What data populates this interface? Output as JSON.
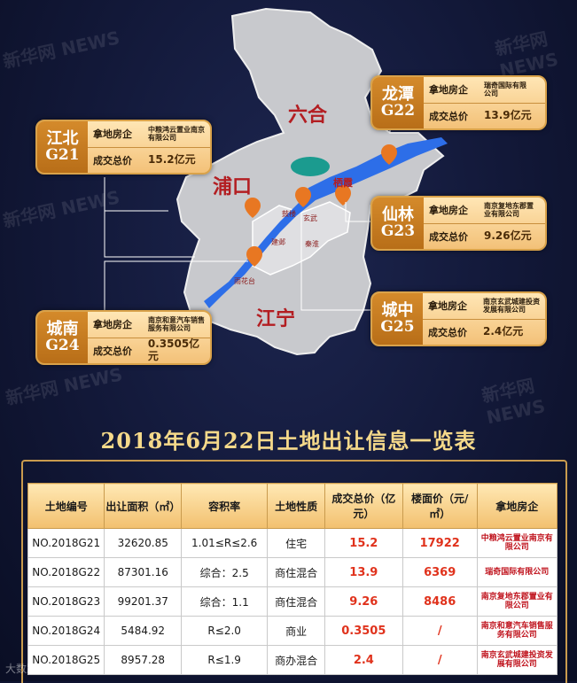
{
  "map": {
    "districts": [
      "六合",
      "浦口",
      "江宁",
      "栖霞"
    ],
    "small_labels": [
      "鼓楼",
      "玄武",
      "建邺",
      "秦淮",
      "雨花台"
    ]
  },
  "cards": [
    {
      "area": "江北",
      "code": "G21",
      "dev_label": "拿地房企",
      "dev": "中粮鸿云置业南京有限公司",
      "price_label": "成交总价",
      "price": "15.2亿元"
    },
    {
      "area": "龙潭",
      "code": "G22",
      "dev_label": "拿地房企",
      "dev": "瑞奇国际有限公司",
      "price_label": "成交总价",
      "price": "13.9亿元"
    },
    {
      "area": "仙林",
      "code": "G23",
      "dev_label": "拿地房企",
      "dev": "南京复地东郡置业有限公司",
      "price_label": "成交总价",
      "price": "9.26亿元"
    },
    {
      "area": "城南",
      "code": "G24",
      "dev_label": "拿地房企",
      "dev": "南京和意汽车销售服务有限公司",
      "price_label": "成交总价",
      "price": "0.3505亿元"
    },
    {
      "area": "城中",
      "code": "G25",
      "dev_label": "拿地房企",
      "dev": "南京玄武城建投资发展有限公司",
      "price_label": "成交总价",
      "price": "2.4亿元"
    }
  ],
  "title": "2018年6月22日土地出让信息一览表",
  "table": {
    "headers": [
      "土地编号",
      "出让面积（㎡）",
      "容积率",
      "土地性质",
      "成交总价（亿元）",
      "楼面价（元/㎡）",
      "拿地房企"
    ],
    "rows": [
      [
        "NO.2018G21",
        "32620.85",
        "1.01≤R≤2.6",
        "住宅",
        "15.2",
        "17922",
        "中粮鸿云置业南京有限公司"
      ],
      [
        "NO.2018G22",
        "87301.16",
        "综合：2.5",
        "商住混合",
        "13.9",
        "6369",
        "瑞奇国际有限公司"
      ],
      [
        "NO.2018G23",
        "99201.37",
        "综合：1.1",
        "商住混合",
        "9.26",
        "8486",
        "南京复地东郡置业有限公司"
      ],
      [
        "NO.2018G24",
        "5484.92",
        "R≤2.0",
        "商业",
        "0.3505",
        "/",
        "南京和意汽车销售服务有限公司"
      ],
      [
        "NO.2018G25",
        "8957.28",
        "R≤1.9",
        "商办混合",
        "2.4",
        "/",
        "南京玄武城建投资发展有限公司"
      ]
    ]
  },
  "footer": "大数跨境",
  "watermark": "新华网 NEWS"
}
